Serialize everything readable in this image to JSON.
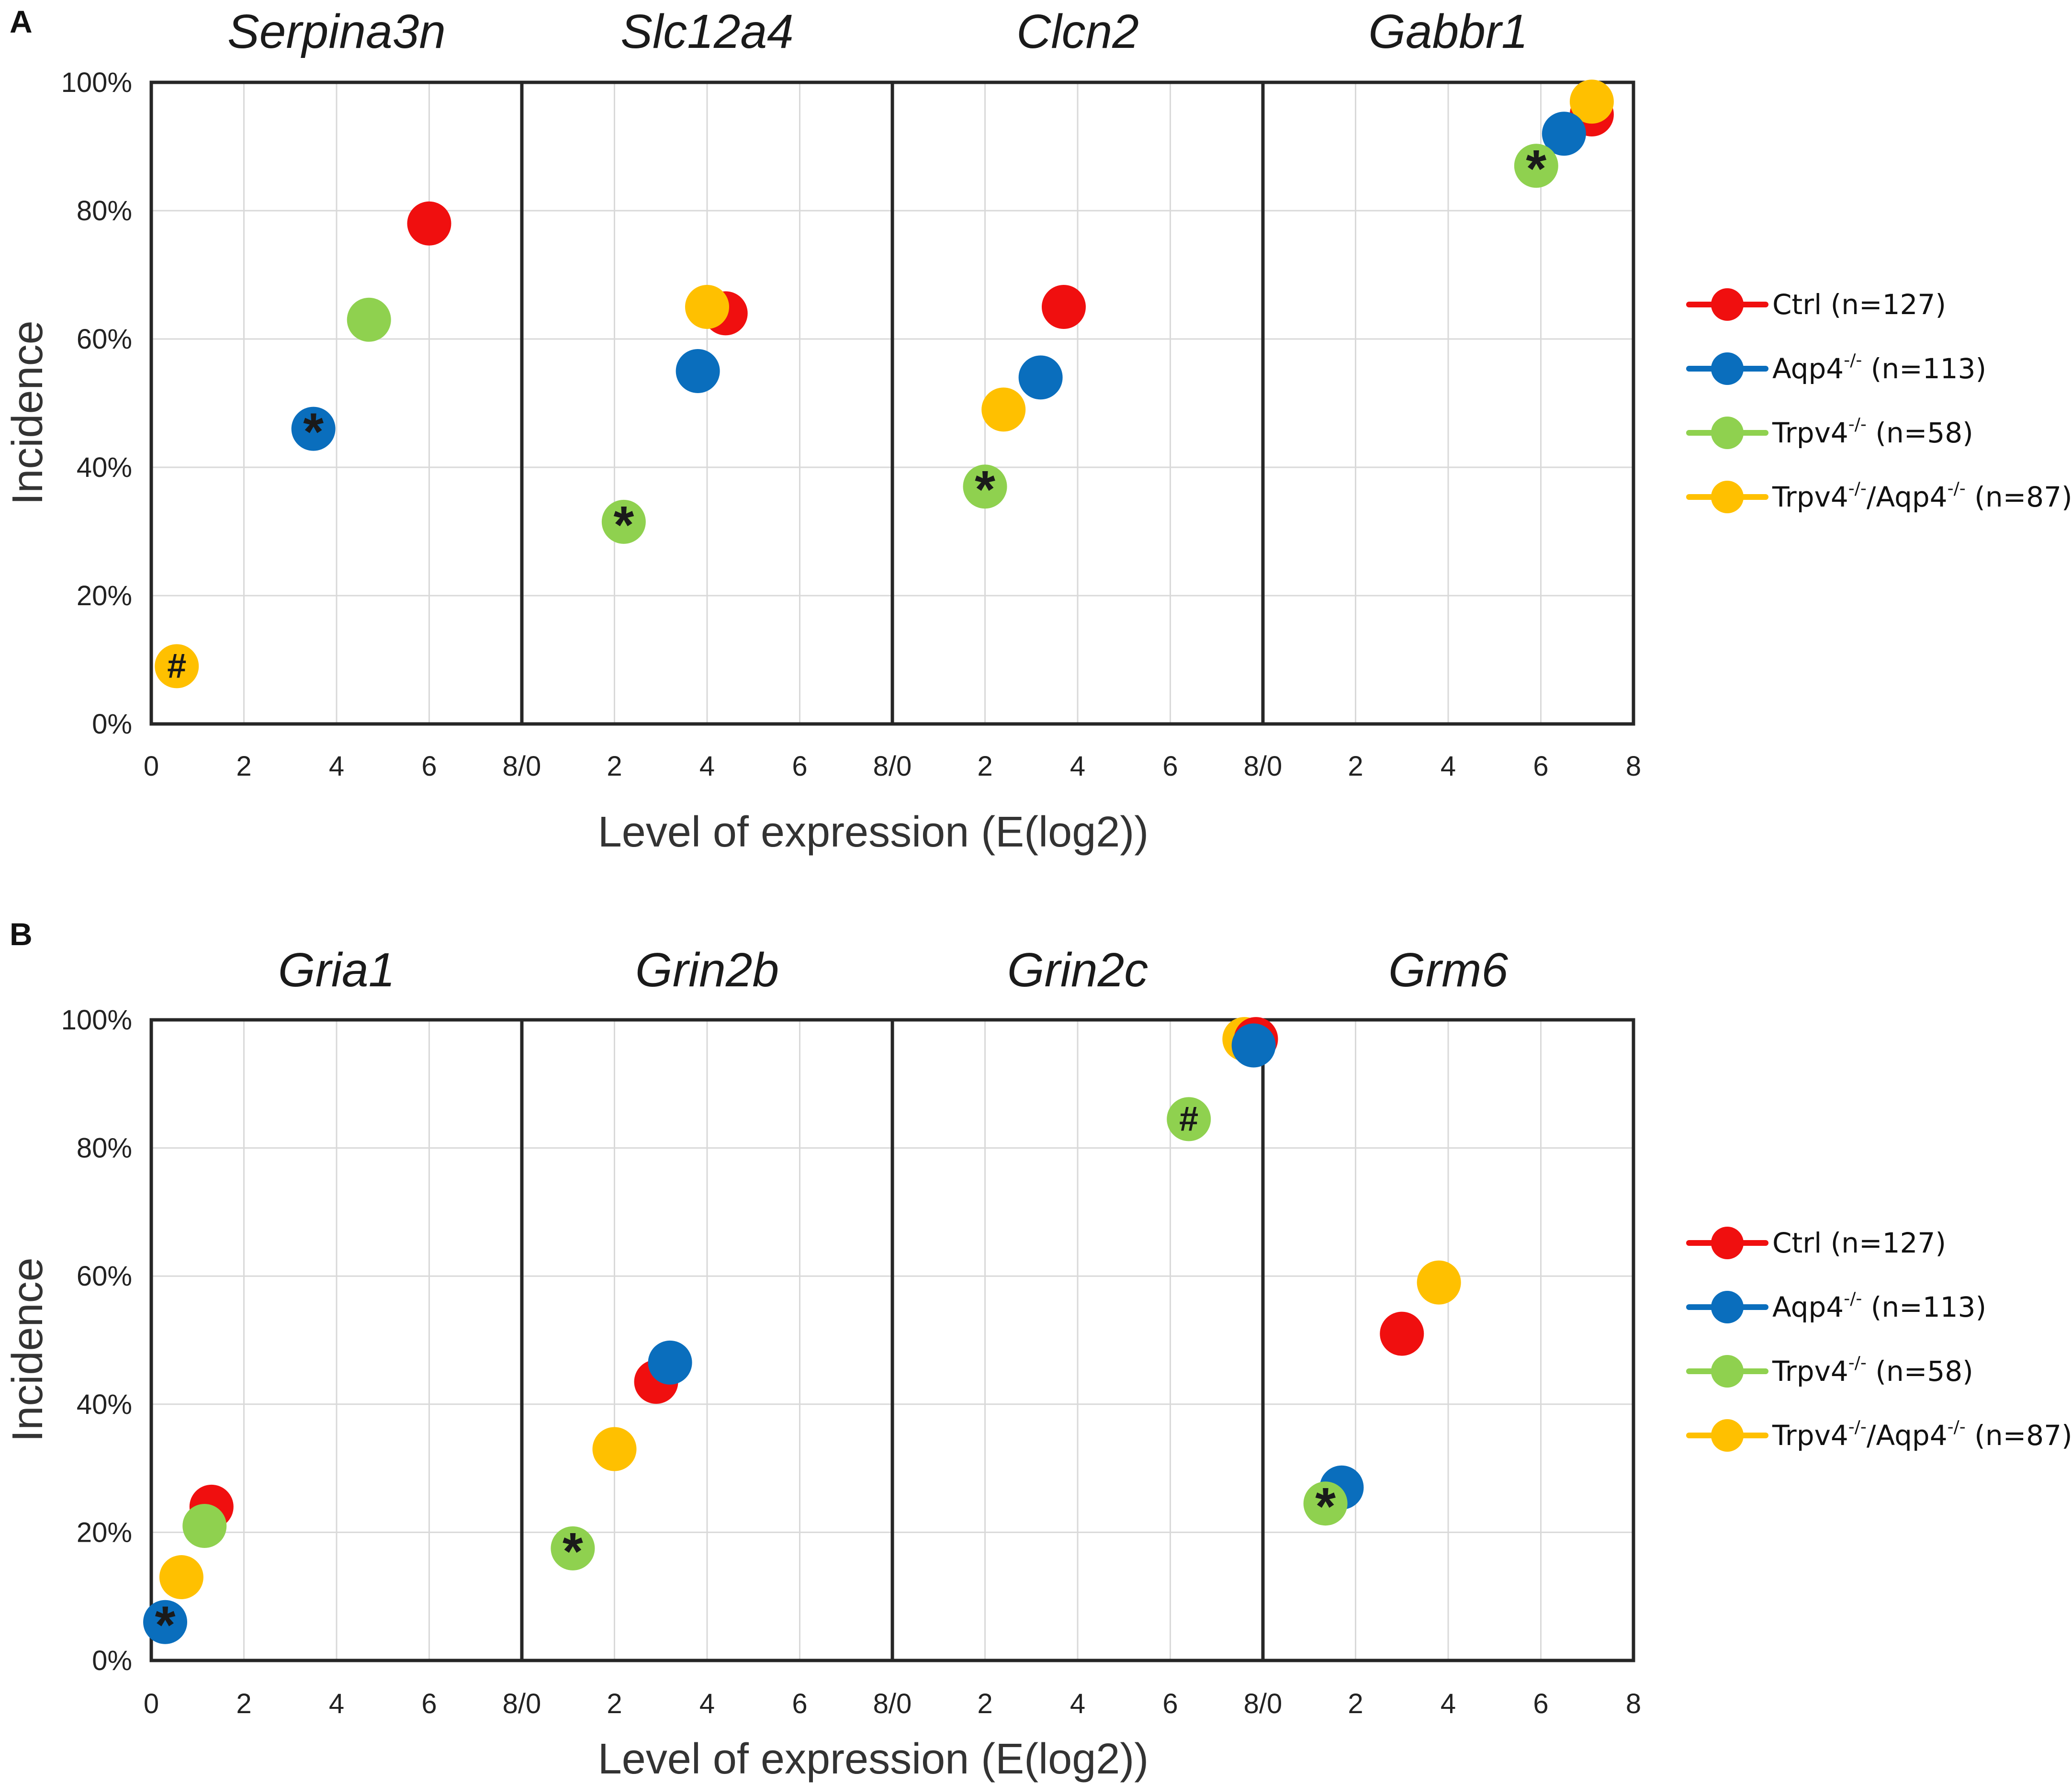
{
  "series_legend": [
    {
      "key": "ctrl",
      "base": "Ctrl",
      "sup": "",
      "tail": "",
      "count": "(n=127)",
      "color": "#f00f0f"
    },
    {
      "key": "aqp4",
      "base": "Aqp4",
      "sup": "-/-",
      "tail": "",
      "count": "(n=113)",
      "color": "#0a6ebd"
    },
    {
      "key": "trpv4",
      "base": "Trpv4",
      "sup": "-/-",
      "tail": "",
      "count": "(n=58)",
      "color": "#8fd14f"
    },
    {
      "key": "double",
      "base": "Trpv4",
      "sup": "-/-",
      "tail": "/Aqp4",
      "sup2": "-/-",
      "count": "(n=87)",
      "color": "#ffc000"
    }
  ],
  "chart_data": [
    {
      "type": "scatter",
      "panel": "A",
      "xlabel": "Level of expression (E(log2))",
      "ylabel": "Incidence",
      "xlim": [
        0,
        8
      ],
      "ylim": [
        0,
        100
      ],
      "y_ticks": [
        "0%",
        "20%",
        "40%",
        "60%",
        "80%",
        "100%"
      ],
      "x_ticks": [
        "0",
        "2",
        "4",
        "6",
        "8/0",
        "2",
        "4",
        "6",
        "8/0",
        "2",
        "4",
        "6",
        "8/0",
        "2",
        "4",
        "6",
        "8"
      ],
      "genes": [
        {
          "name": "Serpina3n",
          "points": [
            {
              "series": "ctrl",
              "x": 6.0,
              "y": 78
            },
            {
              "series": "trpv4",
              "x": 4.7,
              "y": 63
            },
            {
              "series": "aqp4",
              "x": 3.5,
              "y": 46,
              "mark": "*"
            },
            {
              "series": "double",
              "x": 0.55,
              "y": 9,
              "mark": "#"
            }
          ]
        },
        {
          "name": "Slc12a4",
          "points": [
            {
              "series": "ctrl",
              "x": 4.4,
              "y": 64
            },
            {
              "series": "double",
              "x": 4.0,
              "y": 65
            },
            {
              "series": "aqp4",
              "x": 3.8,
              "y": 55
            },
            {
              "series": "trpv4",
              "x": 2.2,
              "y": 31.5,
              "mark": "*"
            }
          ]
        },
        {
          "name": "Clcn2",
          "points": [
            {
              "series": "ctrl",
              "x": 3.7,
              "y": 65
            },
            {
              "series": "aqp4",
              "x": 3.2,
              "y": 54
            },
            {
              "series": "double",
              "x": 2.4,
              "y": 49
            },
            {
              "series": "trpv4",
              "x": 2.0,
              "y": 37,
              "mark": "*"
            }
          ]
        },
        {
          "name": "Gabbr1",
          "points": [
            {
              "series": "ctrl",
              "x": 7.1,
              "y": 95
            },
            {
              "series": "double",
              "x": 7.1,
              "y": 97
            },
            {
              "series": "aqp4",
              "x": 6.5,
              "y": 92
            },
            {
              "series": "trpv4",
              "x": 5.9,
              "y": 87,
              "mark": "*"
            }
          ]
        }
      ]
    },
    {
      "type": "scatter",
      "panel": "B",
      "xlabel": "Level of expression (E(log2))",
      "ylabel": "Incidence",
      "xlim": [
        0,
        8
      ],
      "ylim": [
        0,
        100
      ],
      "y_ticks": [
        "0%",
        "20%",
        "40%",
        "60%",
        "80%",
        "100%"
      ],
      "x_ticks": [
        "0",
        "2",
        "4",
        "6",
        "8/0",
        "2",
        "4",
        "6",
        "8/0",
        "2",
        "4",
        "6",
        "8/0",
        "2",
        "4",
        "6",
        "8"
      ],
      "genes": [
        {
          "name": "Gria1",
          "points": [
            {
              "series": "ctrl",
              "x": 1.3,
              "y": 24
            },
            {
              "series": "trpv4",
              "x": 1.15,
              "y": 21
            },
            {
              "series": "double",
              "x": 0.65,
              "y": 13
            },
            {
              "series": "aqp4",
              "x": 0.3,
              "y": 6,
              "mark": "*"
            }
          ]
        },
        {
          "name": "Grin2b",
          "points": [
            {
              "series": "ctrl",
              "x": 2.9,
              "y": 43.5
            },
            {
              "series": "aqp4",
              "x": 3.2,
              "y": 46.5
            },
            {
              "series": "double",
              "x": 2.0,
              "y": 33
            },
            {
              "series": "trpv4",
              "x": 1.1,
              "y": 17.5,
              "mark": "*"
            }
          ]
        },
        {
          "name": "Grin2c",
          "points": [
            {
              "series": "double",
              "x": 7.6,
              "y": 97
            },
            {
              "series": "ctrl",
              "x": 7.85,
              "y": 97
            },
            {
              "series": "aqp4",
              "x": 7.8,
              "y": 96
            },
            {
              "series": "trpv4",
              "x": 6.4,
              "y": 84.5,
              "mark": "#"
            }
          ]
        },
        {
          "name": "Grm6",
          "points": [
            {
              "series": "double",
              "x": 3.8,
              "y": 59
            },
            {
              "series": "ctrl",
              "x": 3.0,
              "y": 51
            },
            {
              "series": "aqp4",
              "x": 1.7,
              "y": 27
            },
            {
              "series": "trpv4",
              "x": 1.35,
              "y": 24.5,
              "mark": "*"
            }
          ]
        }
      ]
    }
  ]
}
